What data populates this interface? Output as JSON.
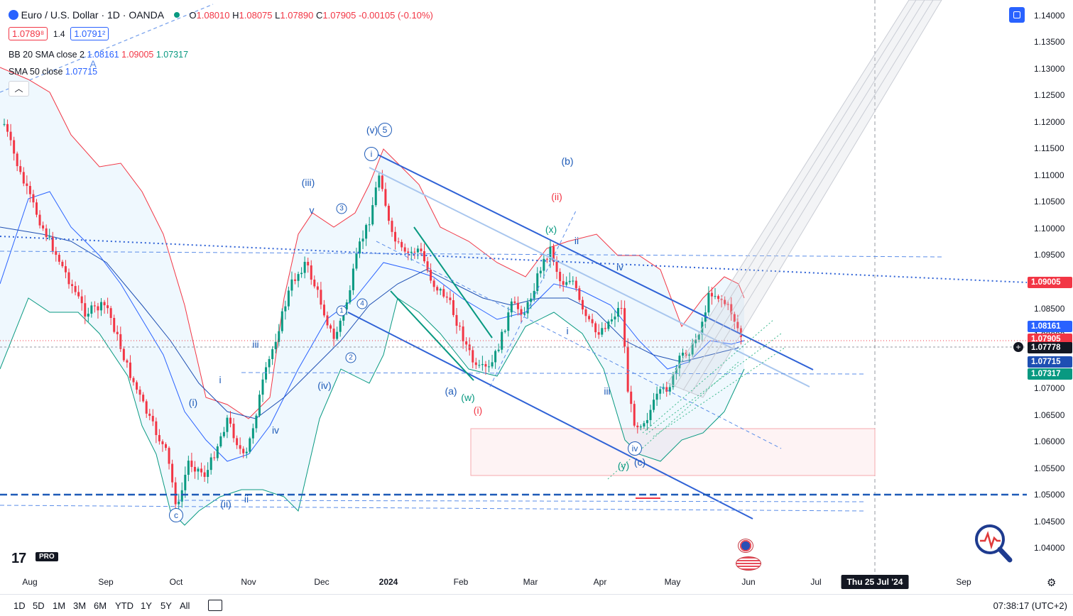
{
  "symbol": {
    "title": "Euro / U.S. Dollar · 1D · OANDA",
    "open_label": "O",
    "open": "1.08010",
    "high_label": "H",
    "high": "1.08075",
    "low_label": "L",
    "low": "1.07890",
    "close_label": "C",
    "close": "1.07905",
    "change": "-0.00105 (-0.10%)",
    "bid": "1.0789⁸",
    "spread": "1.4",
    "ask": "1.0791²"
  },
  "indicators": {
    "bb_label": "BB 20 SMA close 2",
    "bb_basis": "1.08161",
    "bb_upper": "1.09005",
    "bb_lower": "1.07317",
    "sma_label": "SMA 50 close",
    "sma_value": "1.07715"
  },
  "price_axis": {
    "ticks": [
      "1.14000",
      "1.13500",
      "1.13000",
      "1.12500",
      "1.12000",
      "1.11500",
      "1.11000",
      "1.10500",
      "1.10000",
      "1.09500",
      "1.09000",
      "1.08500",
      "1.08000",
      "1.07500",
      "1.07000",
      "1.06500",
      "1.06000",
      "1.05500",
      "1.05000",
      "1.04500",
      "1.04000"
    ],
    "badges": {
      "upper": "1.09005",
      "basis": "1.08161",
      "close": "1.07905",
      "cursor": "1.07778",
      "sma": "1.07715",
      "lower": "1.07317"
    },
    "colors": {
      "red": "#f23645",
      "blue": "#2962ff",
      "dark": "#131722",
      "navy": "#1e4fb3",
      "green": "#089981"
    }
  },
  "time_axis": {
    "ticks": [
      "Aug",
      "Sep",
      "Oct",
      "Nov",
      "Dec",
      "2024",
      "Feb",
      "Mar",
      "Apr",
      "May",
      "Jun",
      "Jul",
      "Sep"
    ],
    "cursor": "Thu 25 Jul '24"
  },
  "timeframes": [
    "1D",
    "5D",
    "1M",
    "3M",
    "6M",
    "YTD",
    "1Y",
    "5Y",
    "All"
  ],
  "timezone": "07:38:17 (UTC+2)",
  "branding": {
    "logo": "17",
    "badge": "PRO"
  },
  "wave_labels": [
    {
      "text": "(v)",
      "color": "#1e5bb8"
    },
    {
      "text": "(b)",
      "color": "#1e5bb8"
    },
    {
      "text": "(ii)",
      "color": "#f23645"
    },
    {
      "text": "(iii)",
      "color": "#1e5bb8"
    },
    {
      "text": "v",
      "color": "#1e5bb8"
    },
    {
      "text": "(x)",
      "color": "#089981"
    },
    {
      "text": "ii",
      "color": "#1e5bb8"
    },
    {
      "text": "iv",
      "color": "#1e5bb8"
    },
    {
      "text": "i",
      "color": "#1e5bb8"
    },
    {
      "text": "iii",
      "color": "#1e5bb8"
    },
    {
      "text": "iii",
      "color": "#1e5bb8"
    },
    {
      "text": "i",
      "color": "#1e5bb8"
    },
    {
      "text": "(i)",
      "color": "#1e5bb8"
    },
    {
      "text": "(iv)",
      "color": "#1e5bb8"
    },
    {
      "text": "iv",
      "color": "#1e5bb8"
    },
    {
      "text": "(a)",
      "color": "#1e5bb8"
    },
    {
      "text": "(w)",
      "color": "#089981"
    },
    {
      "text": "(i)",
      "color": "#f23645"
    },
    {
      "text": "(ii)",
      "color": "#1e5bb8"
    },
    {
      "text": "ii",
      "color": "#1e5bb8"
    },
    {
      "text": "(y)",
      "color": "#089981"
    },
    {
      "text": "(c)",
      "color": "#1e5bb8"
    },
    {
      "text": "A",
      "color": "#5b8de8"
    }
  ],
  "circled_labels": [
    "5",
    "i",
    "3",
    "1",
    "4",
    "2",
    "c",
    "iv"
  ]
}
